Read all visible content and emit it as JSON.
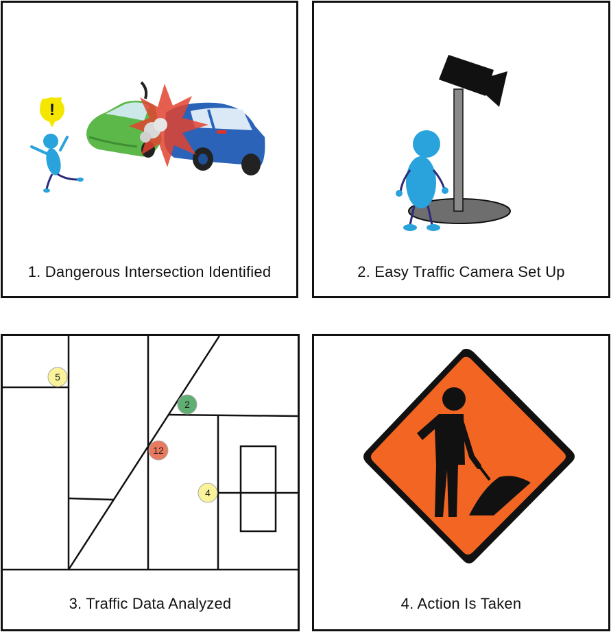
{
  "panels": [
    {
      "caption": "1. Dangerous Intersection Identified"
    },
    {
      "caption": "2. Easy Traffic Camera Set Up"
    },
    {
      "caption": "3. Traffic Data Analyzed"
    },
    {
      "caption": "4. Action Is Taken"
    }
  ],
  "alert_symbol": "!",
  "map_markers": [
    {
      "label": "5",
      "color": "#fbf39a"
    },
    {
      "label": "2",
      "color": "#5fae72"
    },
    {
      "label": "12",
      "color": "#e9795f"
    },
    {
      "label": "4",
      "color": "#fbf39a"
    }
  ],
  "colors": {
    "person": "#2aa3dc",
    "green_car": "#5db84a",
    "blue_car": "#2a63b8",
    "sign_orange": "#f26522",
    "camera": "#111111"
  }
}
